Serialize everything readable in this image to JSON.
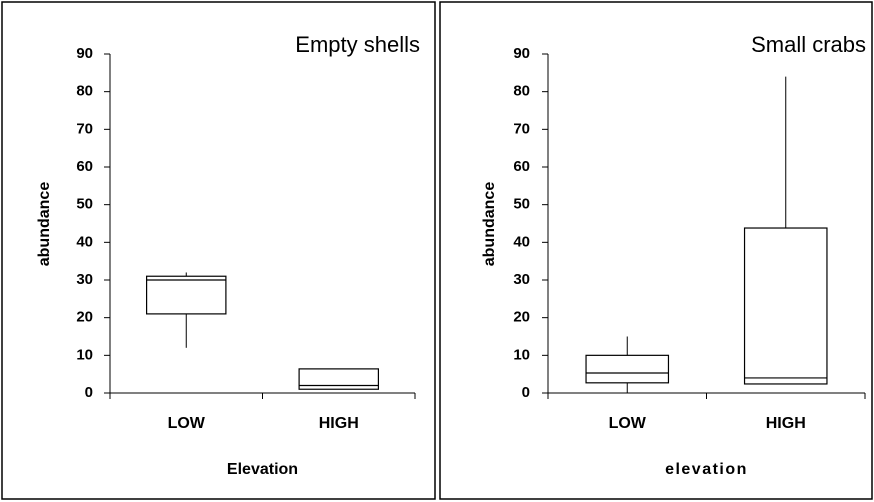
{
  "chart_data": [
    {
      "type": "box",
      "title": "Empty shells",
      "x_label": "Elevation",
      "y_label": "abundance",
      "categories": [
        "LOW",
        "HIGH"
      ],
      "boxes": [
        {
          "min": 12,
          "q1": 21,
          "median": 30,
          "q3": 31,
          "max": 32
        },
        {
          "min": 1,
          "q1": 1,
          "median": 2,
          "q3": 6.4,
          "max": 6.4
        }
      ],
      "color": "#ffffff",
      "line_color": "#000000",
      "ylim": [
        0,
        90
      ],
      "yticks": [
        0,
        10,
        20,
        30,
        40,
        50,
        60,
        70,
        80,
        90
      ]
    },
    {
      "type": "box",
      "title": "Small crabs",
      "x_label": "elevation",
      "y_label": "abundance",
      "categories": [
        "LOW",
        "HIGH"
      ],
      "boxes": [
        {
          "min": 0,
          "q1": 2.7,
          "median": 5.3,
          "q3": 10,
          "max": 15
        },
        {
          "min": 2.4,
          "q1": 2.4,
          "median": 4,
          "q3": 43.8,
          "max": 84
        }
      ],
      "color": "#ffffff",
      "line_color": "#000000",
      "ylim": [
        0,
        90
      ],
      "yticks": [
        0,
        10,
        20,
        30,
        40,
        50,
        60,
        70,
        80,
        90
      ]
    }
  ]
}
